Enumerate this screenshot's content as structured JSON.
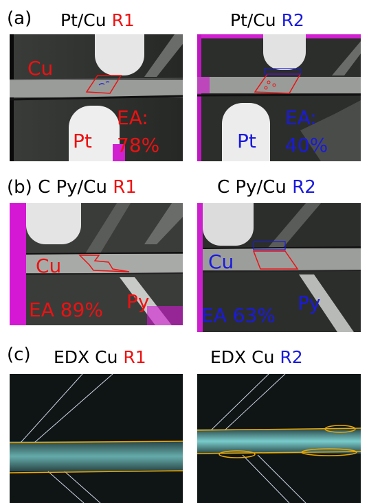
{
  "row_a": {
    "letter": "(a)",
    "left_title": "Pt/Cu",
    "left_run": "R1",
    "right_title": "Pt/Cu",
    "right_run": "R2",
    "left_cu": "Cu",
    "left_pt": "Pt",
    "left_ea_label": "EA:",
    "left_ea_value": "78%",
    "right_pt": "Pt",
    "right_ea_label": "EA:",
    "right_ea_value": "40%"
  },
  "row_b": {
    "letter": "(b)",
    "left_title": "C Py/Cu",
    "left_run": "R1",
    "right_title": "C Py/Cu",
    "right_run": "R2",
    "left_cu": "Cu",
    "left_ea": "EA 89%",
    "left_py": "Py",
    "right_cu": "Cu",
    "right_ea": "EA 63%",
    "right_py": "Py"
  },
  "row_c": {
    "letter": "(c)",
    "left_title": "EDX Cu",
    "left_run": "R1",
    "right_title": "EDX Cu",
    "right_run": "R2"
  },
  "colors": {
    "red": "#ee1111",
    "blue": "#1a1add",
    "magenta": "#e020e0",
    "edx_outline": "#f0a800",
    "edx_signal": "#7fd6d6"
  }
}
